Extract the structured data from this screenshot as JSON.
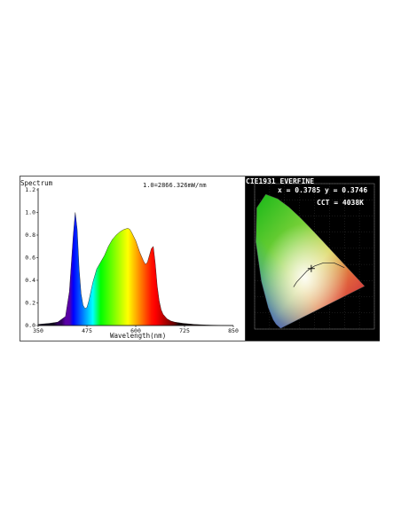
{
  "chart_data": [
    {
      "type": "area",
      "title": "Spectrum",
      "annotation": "1.0=2866.326mW/nm",
      "xlabel": "Wavelength(nm)",
      "ylabel": "",
      "xlim": [
        350,
        850
      ],
      "ylim": [
        0,
        1.2
      ],
      "x_ticks": [
        "350",
        "475",
        "600",
        "725",
        "850"
      ],
      "y_ticks": [
        "0.0",
        "0.2",
        "0.4",
        "0.6",
        "0.8",
        "1.0",
        "1.2"
      ],
      "x": [
        350,
        380,
        400,
        420,
        430,
        440,
        445,
        450,
        455,
        460,
        465,
        470,
        475,
        480,
        485,
        490,
        500,
        510,
        520,
        530,
        540,
        550,
        560,
        570,
        580,
        585,
        590,
        600,
        610,
        620,
        625,
        630,
        635,
        640,
        645,
        650,
        655,
        660,
        665,
        670,
        680,
        690,
        700,
        720,
        750,
        780,
        800,
        850
      ],
      "y": [
        0.01,
        0.02,
        0.03,
        0.08,
        0.3,
        0.8,
        1.0,
        0.85,
        0.5,
        0.28,
        0.18,
        0.15,
        0.16,
        0.22,
        0.3,
        0.38,
        0.5,
        0.56,
        0.62,
        0.7,
        0.76,
        0.8,
        0.83,
        0.85,
        0.86,
        0.85,
        0.82,
        0.75,
        0.65,
        0.57,
        0.54,
        0.56,
        0.62,
        0.68,
        0.7,
        0.55,
        0.35,
        0.22,
        0.14,
        0.1,
        0.06,
        0.04,
        0.03,
        0.02,
        0.01,
        0.005,
        0.003,
        0.0
      ],
      "grid": false,
      "legend": "none"
    },
    {
      "type": "scatter",
      "title": "CIE1931 EVERFINE",
      "point": {
        "x": 0.3785,
        "y": 0.3746
      },
      "readout": "x = 0.3785  y = 0.3746",
      "cct": "CCT = 4038K",
      "grid": true,
      "background": "#000000"
    }
  ],
  "figure": {
    "spectrum_title": "Spectrum",
    "spectrum_annotation": "1.0=2866.326mW/nm",
    "spectrum_xlabel": "Wavelength(nm)",
    "cie_title": "CIE1931 EVERFINE",
    "cie_readout": "x = 0.3785  y = 0.3746",
    "cie_cct": "CCT = 4038K"
  }
}
